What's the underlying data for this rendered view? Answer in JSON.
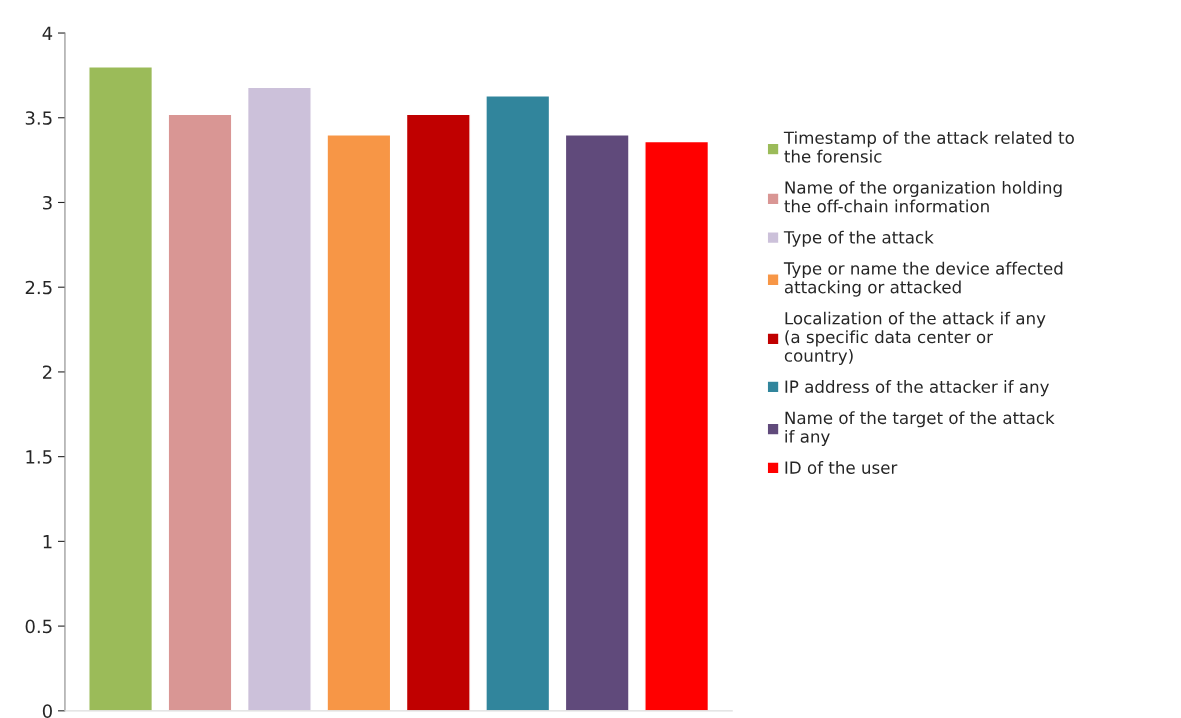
{
  "chart_data": {
    "type": "bar",
    "categories": [
      null
    ],
    "series": [
      {
        "name": "Timestamp of the attack related to the forensic",
        "color": "#9bbb59",
        "values": [
          3.8
        ]
      },
      {
        "name": "Name of the organization holding the off-chain information",
        "color": "#d99694",
        "values": [
          3.52
        ]
      },
      {
        "name": "Type of the attack",
        "color": "#ccc1da",
        "values": [
          3.68
        ]
      },
      {
        "name": "Type or name the device affected attacking or attacked",
        "color": "#f79646",
        "values": [
          3.4
        ]
      },
      {
        "name": "Localization of the attack if any (a specific data center or country)",
        "color": "#c00000",
        "values": [
          3.52
        ]
      },
      {
        "name": "IP address of the attacker if any",
        "color": "#31859c",
        "values": [
          3.63
        ]
      },
      {
        "name": "Name of the target of the attack if any",
        "color": "#604a7b",
        "values": [
          3.4
        ]
      },
      {
        "name": "ID of the user",
        "color": "#ff0000",
        "values": [
          3.36
        ]
      }
    ],
    "ylim": [
      0,
      4
    ],
    "yticks": [
      0,
      0.5,
      1,
      1.5,
      2,
      2.5,
      3,
      3.5,
      4
    ],
    "grid": false,
    "legend": "right"
  }
}
